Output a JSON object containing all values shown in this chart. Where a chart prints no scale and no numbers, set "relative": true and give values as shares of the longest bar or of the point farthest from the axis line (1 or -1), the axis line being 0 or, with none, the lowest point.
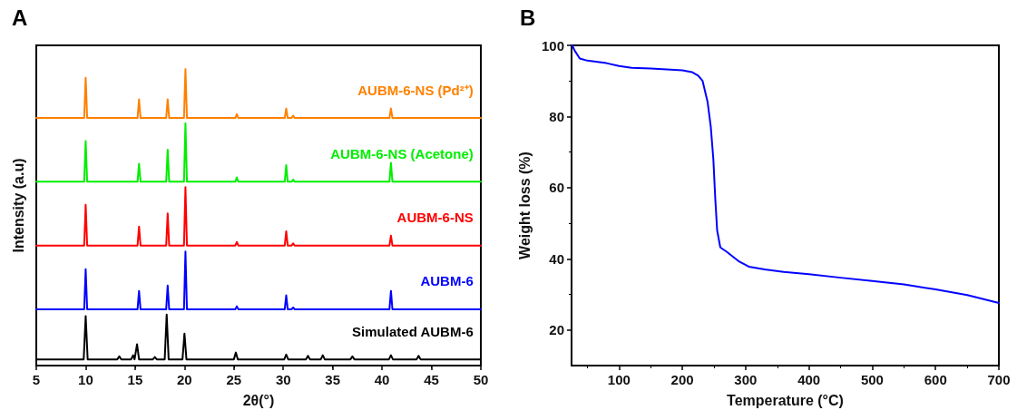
{
  "chart_data": [
    {
      "type": "line",
      "title": "A",
      "xlabel": "2θ(°)",
      "ylabel": "Intensity (a.u)",
      "relative": true,
      "tick_labels": "x",
      "legend": false,
      "grid": false,
      "marker": "none",
      "line_style": "solid",
      "xlim": [
        5,
        50
      ],
      "xticks": [
        5,
        10,
        15,
        20,
        25,
        30,
        35,
        40,
        45,
        50
      ],
      "series": [
        {
          "name": "Simulated AUBM-6",
          "color": "#000000",
          "x": [
            5,
            9.8,
            10.0,
            10.2,
            13.2,
            13.4,
            13.6,
            14.6,
            14.8,
            14.95,
            15.2,
            15.4,
            16.8,
            17.0,
            17.2,
            18.0,
            18.2,
            18.4,
            19.8,
            20.0,
            20.2,
            25.0,
            25.2,
            25.4,
            30.1,
            30.3,
            30.5,
            32.3,
            32.5,
            32.7,
            33.8,
            34.0,
            34.2,
            36.8,
            37.0,
            37.2,
            40.7,
            40.9,
            41.1,
            43.5,
            43.7,
            43.9,
            50
          ],
          "values": [
            0.021,
            0.021,
            0.167,
            0.021,
            0.021,
            0.031,
            0.021,
            0.021,
            0.035,
            0.021,
            0.072,
            0.021,
            0.021,
            0.029,
            0.021,
            0.021,
            0.172,
            0.021,
            0.021,
            0.108,
            0.021,
            0.021,
            0.044,
            0.021,
            0.021,
            0.037,
            0.021,
            0.021,
            0.033,
            0.021,
            0.021,
            0.035,
            0.021,
            0.021,
            0.031,
            0.021,
            0.021,
            0.035,
            0.021,
            0.021,
            0.033,
            0.021,
            0.021
          ]
        },
        {
          "name": "AUBM-6",
          "color": "#0000ff",
          "x": [
            5,
            9.85,
            10.0,
            10.15,
            15.25,
            15.4,
            15.55,
            18.15,
            18.3,
            18.45,
            19.95,
            20.1,
            20.25,
            25.15,
            25.3,
            25.45,
            30.15,
            30.3,
            30.45,
            30.85,
            31.0,
            31.15,
            40.75,
            40.9,
            41.05,
            50
          ],
          "values": [
            0.19,
            0.19,
            0.325,
            0.19,
            0.19,
            0.252,
            0.19,
            0.19,
            0.27,
            0.19,
            0.19,
            0.385,
            0.19,
            0.19,
            0.2,
            0.19,
            0.19,
            0.237,
            0.19,
            0.19,
            0.196,
            0.19,
            0.19,
            0.252,
            0.19,
            0.19
          ]
        },
        {
          "name": "AUBM-6-NS",
          "color": "#ff0000",
          "x": [
            5,
            9.85,
            10.0,
            10.15,
            15.25,
            15.4,
            15.55,
            18.15,
            18.3,
            18.45,
            19.95,
            20.1,
            20.25,
            25.15,
            25.3,
            25.45,
            30.15,
            30.3,
            30.45,
            30.85,
            31.0,
            31.15,
            40.75,
            40.9,
            41.05,
            50
          ],
          "values": [
            0.405,
            0.405,
            0.542,
            0.405,
            0.405,
            0.469,
            0.405,
            0.405,
            0.513,
            0.405,
            0.405,
            0.602,
            0.405,
            0.405,
            0.417,
            0.405,
            0.405,
            0.453,
            0.405,
            0.405,
            0.412,
            0.405,
            0.405,
            0.438,
            0.405,
            0.405
          ]
        },
        {
          "name": "AUBM-6-NS (Acetone)",
          "color": "#00ee00",
          "x": [
            5,
            9.85,
            10.0,
            10.15,
            15.25,
            15.4,
            15.55,
            18.15,
            18.3,
            18.45,
            19.95,
            20.1,
            20.25,
            25.15,
            25.3,
            25.45,
            30.15,
            30.3,
            30.45,
            30.85,
            31.0,
            31.15,
            40.75,
            40.9,
            41.05,
            50
          ],
          "values": [
            0.62,
            0.62,
            0.757,
            0.62,
            0.62,
            0.681,
            0.62,
            0.62,
            0.728,
            0.62,
            0.62,
            0.817,
            0.62,
            0.62,
            0.635,
            0.62,
            0.62,
            0.676,
            0.62,
            0.62,
            0.627,
            0.62,
            0.62,
            0.684,
            0.62,
            0.62
          ]
        },
        {
          "name": "AUBM-6-NS (Pd²⁺)",
          "color": "#ff8000",
          "x": [
            5,
            9.85,
            10.0,
            10.15,
            15.25,
            15.4,
            15.55,
            18.15,
            18.3,
            18.45,
            19.95,
            20.1,
            20.25,
            25.15,
            25.3,
            25.45,
            30.15,
            30.3,
            30.45,
            30.85,
            31.0,
            31.15,
            40.75,
            40.9,
            41.05,
            50
          ],
          "values": [
            0.835,
            0.835,
            0.971,
            0.835,
            0.835,
            0.898,
            0.835,
            0.835,
            0.898,
            0.835,
            0.835,
            1.0,
            0.835,
            0.835,
            0.848,
            0.835,
            0.835,
            0.867,
            0.835,
            0.835,
            0.843,
            0.835,
            0.835,
            0.867,
            0.835,
            0.835
          ]
        }
      ]
    },
    {
      "type": "line",
      "title": "B",
      "xlabel": "Temperature (°C)",
      "ylabel": "Weight loss (%)",
      "legend": false,
      "grid": false,
      "marker": "none",
      "line_style": "solid",
      "xlim": [
        25,
        700
      ],
      "xticks": [
        100,
        200,
        300,
        400,
        500,
        600,
        700
      ],
      "ylim": [
        10,
        100
      ],
      "yticks": [
        20,
        40,
        60,
        80,
        100
      ],
      "series": [
        {
          "color": "#0000ff",
          "x": [
            26,
            30,
            38,
            50,
            80,
            100,
            120,
            150,
            200,
            215,
            225,
            232,
            240,
            245,
            249,
            252,
            255,
            260,
            270,
            290,
            305,
            330,
            360,
            400,
            450,
            500,
            550,
            600,
            650,
            700
          ],
          "values": [
            100,
            98.5,
            96.3,
            95.7,
            95,
            94.2,
            93.7,
            93.5,
            93,
            92.5,
            91.5,
            90,
            84,
            77,
            68,
            57,
            48,
            43.2,
            42,
            39.2,
            37.8,
            37,
            36.3,
            35.7,
            34.7,
            33.8,
            32.8,
            31.4,
            29.8,
            27.6
          ]
        }
      ]
    }
  ]
}
